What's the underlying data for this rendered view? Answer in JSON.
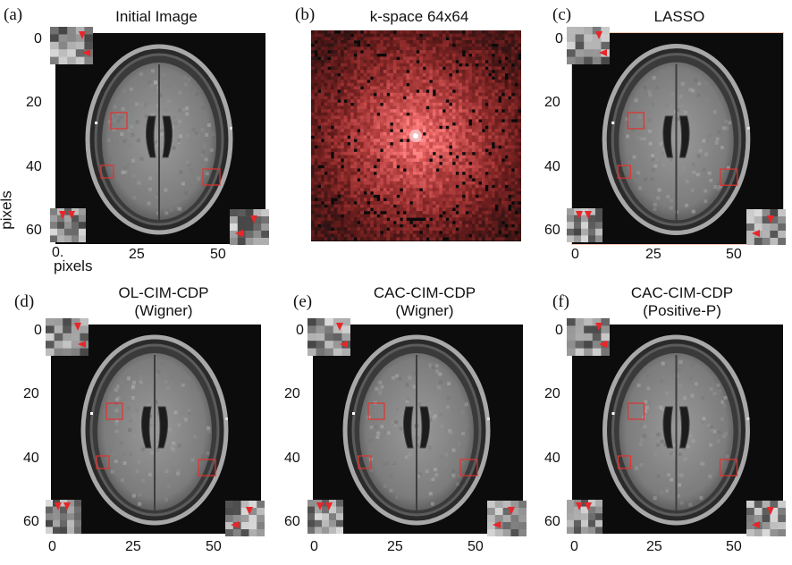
{
  "figure": {
    "panels": [
      {
        "letter": "(a)",
        "title": "Initial Image",
        "subtitle": ""
      },
      {
        "letter": "(b)",
        "title": "k-space 64x64",
        "subtitle": ""
      },
      {
        "letter": "(c)",
        "title": "LASSO",
        "subtitle": ""
      },
      {
        "letter": "(d)",
        "title": "OL-CIM-CDP",
        "subtitle": "(Wigner)"
      },
      {
        "letter": "(e)",
        "title": "CAC-CIM-CDP",
        "subtitle": "(Wigner)"
      },
      {
        "letter": "(f)",
        "title": "CAC-CIM-CDP",
        "subtitle": "(Positive-P)"
      }
    ],
    "yticks": [
      "0",
      "20",
      "40",
      "60"
    ],
    "xticks": [
      "0",
      "25",
      "50"
    ],
    "xtick_a0": "0.",
    "xlabel": "pixels",
    "ylabel": "pixels",
    "colors": {
      "roi_box": "#e0332f",
      "marker": "#e8262a",
      "kspace_tint": "#c6303a",
      "background": "#0c0c0c"
    }
  }
}
